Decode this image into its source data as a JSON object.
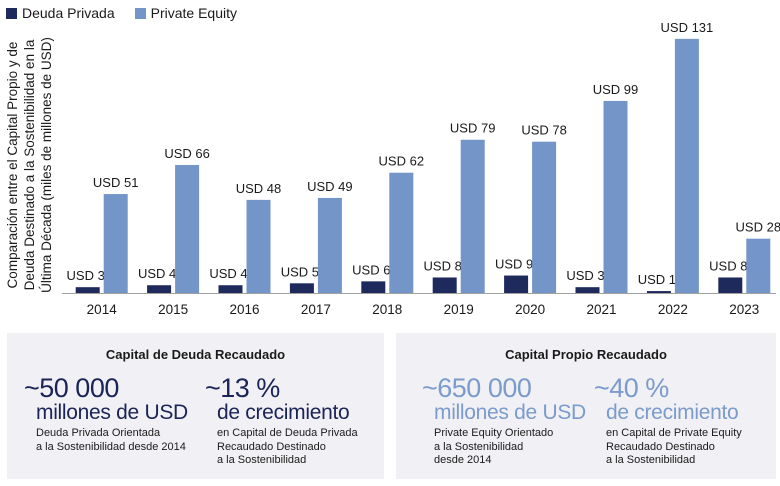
{
  "chart_data": {
    "type": "bar",
    "title": "",
    "xlabel": "",
    "ylabel": "Comparación entre el Capital Propio y de Deuda Destinado a la Sostenibilidad en la Última Década (miles de millones de USD)",
    "ylabel_lines": [
      "Comparación entre el Capital Propio y de",
      "Deuda Destinado a la Sostenibilidad en la",
      "Última Década (miles de millones de USD)"
    ],
    "categories": [
      "2014",
      "2015",
      "2016",
      "2017",
      "2018",
      "2019",
      "2020",
      "2021",
      "2022",
      "2023"
    ],
    "series": [
      {
        "name": "Deuda Privada",
        "color": "#1f2a5c",
        "values": [
          3,
          4,
          4,
          5,
          6,
          8,
          9,
          3,
          1,
          8
        ],
        "labels": [
          "USD 3",
          "USD 4",
          "USD 4",
          "USD 5",
          "USD 6",
          "USD 8",
          "USD 9",
          "USD 3",
          "USD 1",
          "USD 8"
        ]
      },
      {
        "name": "Private Equity",
        "color": "#7395c8",
        "values": [
          51,
          66,
          48,
          49,
          62,
          79,
          78,
          99,
          131,
          28
        ],
        "labels": [
          "USD 51",
          "USD 66",
          "USD 48",
          "USD 49",
          "USD 62",
          "USD 79",
          "USD 78",
          "USD 99",
          "USD 131",
          "USD 28"
        ]
      }
    ],
    "ylim": [
      0,
      140
    ],
    "grid": false,
    "legend": "top-left"
  },
  "cards": [
    {
      "title": "Capital de Deuda Recaudado",
      "stats": [
        {
          "big": "~50 000",
          "medium": "millones de USD",
          "desc": "Deuda Privada Orientada\na la Sostenibilidad desde 2014"
        },
        {
          "big": "~13 %",
          "medium": "de crecimiento",
          "desc": "en Capital de Deuda Privada\nRecaudado Destinado\na la Sostenibilidad"
        }
      ]
    },
    {
      "title": "Capital Propio Recaudado",
      "stats": [
        {
          "big": "~650 000",
          "medium": "millones de USD",
          "desc": "Private Equity Orientado\na la Sostenibilidad\ndesde 2014"
        },
        {
          "big": "~40 %",
          "medium": "de crecimiento",
          "desc": "en Capital de Private Equity\nRecaudado Destinado\na la Sostenibilidad"
        }
      ]
    }
  ]
}
